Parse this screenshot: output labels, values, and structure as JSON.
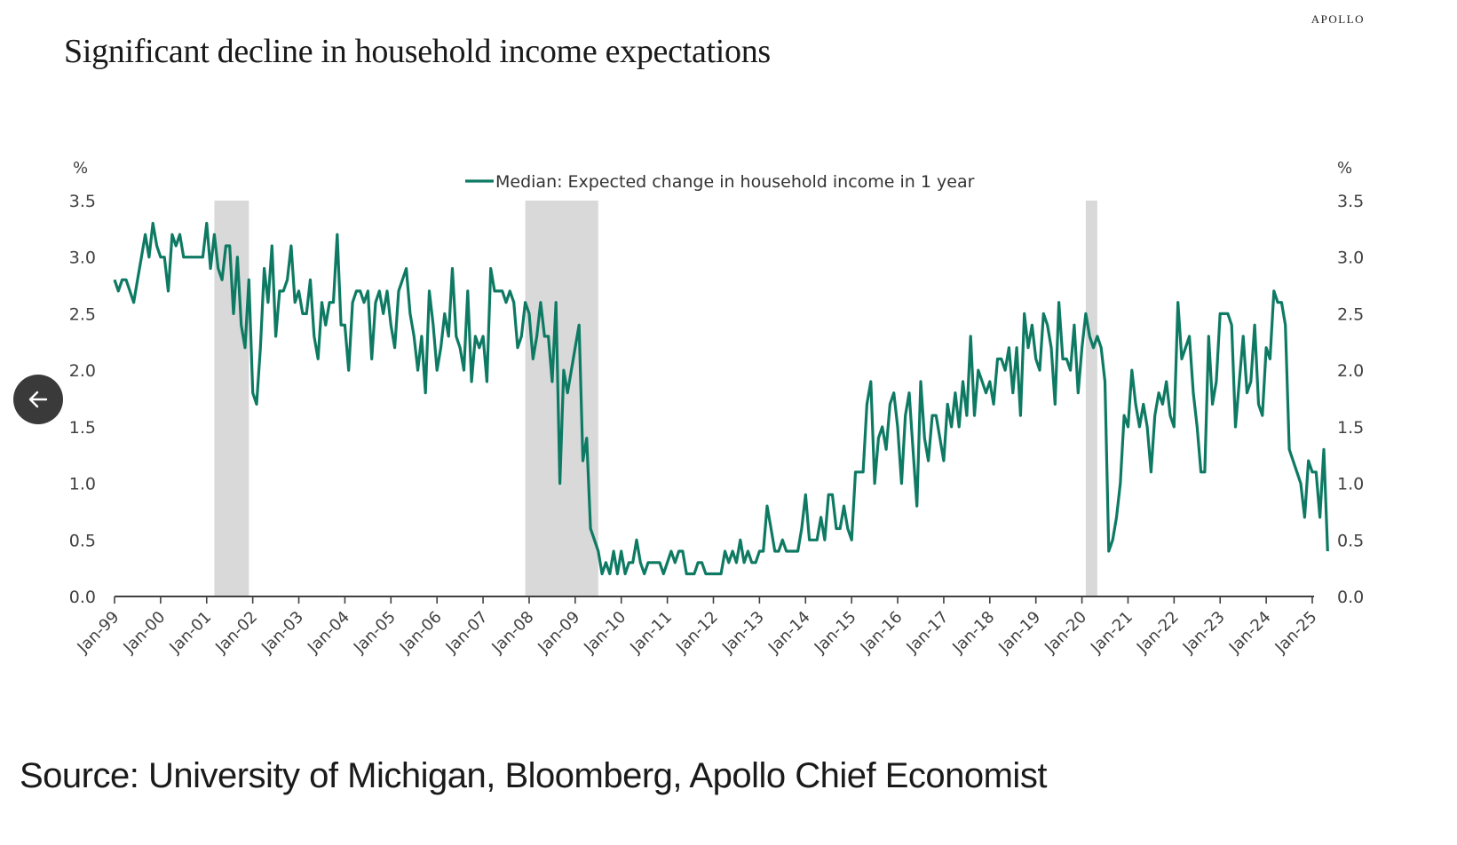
{
  "brand": "APOLLO",
  "title": "Significant decline in household income expectations",
  "source": "Source: University of Michigan, Bloomberg, Apollo Chief Economist",
  "nav": {
    "back_icon": "arrow-left-icon"
  },
  "colors": {
    "line": "#0e7a63",
    "recession": "#d9d9d9",
    "axis": "#404040",
    "text": "#404040"
  },
  "chart_data": {
    "type": "line",
    "title": "Significant decline in household income expectations",
    "xlabel": "",
    "ylabel": "%",
    "ylabel_right": "%",
    "ylim": [
      0,
      3.5
    ],
    "yticks": [
      "0.0",
      "0.5",
      "1.0",
      "1.5",
      "2.0",
      "2.5",
      "3.0",
      "3.5"
    ],
    "x_ticks": [
      "Jan-99",
      "Jan-00",
      "Jan-01",
      "Jan-02",
      "Jan-03",
      "Jan-04",
      "Jan-05",
      "Jan-06",
      "Jan-07",
      "Jan-08",
      "Jan-09",
      "Jan-10",
      "Jan-11",
      "Jan-12",
      "Jan-13",
      "Jan-14",
      "Jan-15",
      "Jan-16",
      "Jan-17",
      "Jan-18",
      "Jan-19",
      "Jan-20",
      "Jan-21",
      "Jan-22",
      "Jan-23",
      "Jan-24",
      "Jan-25"
    ],
    "legend": {
      "position": "top-center",
      "entries": [
        "Median: Expected change in household income in 1 year"
      ]
    },
    "grid": false,
    "recession_shading": [
      {
        "start": "Mar-01",
        "end": "Nov-01"
      },
      {
        "start": "Dec-07",
        "end": "Jun-09"
      },
      {
        "start": "Feb-20",
        "end": "Apr-20"
      }
    ],
    "series": [
      {
        "name": "Median: Expected change in household income in 1 year",
        "start": "Jan-99",
        "frequency": "monthly",
        "values": [
          2.8,
          2.7,
          2.8,
          2.8,
          2.7,
          2.6,
          2.8,
          3.0,
          3.2,
          3.0,
          3.3,
          3.1,
          3.0,
          3.0,
          2.7,
          3.2,
          3.1,
          3.2,
          3.0,
          3.0,
          3.0,
          3.0,
          3.0,
          3.0,
          3.3,
          2.9,
          3.2,
          2.9,
          2.8,
          3.1,
          3.1,
          2.5,
          3.0,
          2.4,
          2.2,
          2.8,
          1.8,
          1.7,
          2.2,
          2.9,
          2.6,
          3.1,
          2.3,
          2.7,
          2.7,
          2.8,
          3.1,
          2.6,
          2.7,
          2.5,
          2.5,
          2.8,
          2.3,
          2.1,
          2.6,
          2.4,
          2.6,
          2.6,
          3.2,
          2.4,
          2.4,
          2.0,
          2.6,
          2.7,
          2.7,
          2.6,
          2.7,
          2.1,
          2.6,
          2.7,
          2.5,
          2.7,
          2.4,
          2.2,
          2.7,
          2.8,
          2.9,
          2.5,
          2.3,
          2.0,
          2.3,
          1.8,
          2.7,
          2.4,
          2.0,
          2.2,
          2.5,
          2.3,
          2.9,
          2.3,
          2.2,
          2.0,
          2.7,
          1.9,
          2.3,
          2.2,
          2.3,
          1.9,
          2.9,
          2.7,
          2.7,
          2.7,
          2.6,
          2.7,
          2.6,
          2.2,
          2.3,
          2.6,
          2.5,
          2.1,
          2.3,
          2.6,
          2.3,
          2.3,
          1.9,
          2.6,
          1.0,
          2.0,
          1.8,
          2.0,
          2.2,
          2.4,
          1.2,
          1.4,
          0.6,
          0.5,
          0.4,
          0.2,
          0.3,
          0.2,
          0.4,
          0.2,
          0.4,
          0.2,
          0.3,
          0.3,
          0.5,
          0.3,
          0.2,
          0.3,
          0.3,
          0.3,
          0.3,
          0.2,
          0.3,
          0.4,
          0.3,
          0.4,
          0.4,
          0.2,
          0.2,
          0.2,
          0.3,
          0.3,
          0.2,
          0.2,
          0.2,
          0.2,
          0.2,
          0.4,
          0.3,
          0.4,
          0.3,
          0.5,
          0.3,
          0.4,
          0.3,
          0.3,
          0.4,
          0.4,
          0.8,
          0.6,
          0.4,
          0.4,
          0.5,
          0.4,
          0.4,
          0.4,
          0.4,
          0.6,
          0.9,
          0.5,
          0.5,
          0.5,
          0.7,
          0.5,
          0.9,
          0.9,
          0.6,
          0.6,
          0.8,
          0.6,
          0.5,
          1.1,
          1.1,
          1.1,
          1.7,
          1.9,
          1.0,
          1.4,
          1.5,
          1.3,
          1.7,
          1.8,
          1.5,
          1.0,
          1.6,
          1.8,
          1.3,
          0.8,
          1.9,
          1.4,
          1.2,
          1.6,
          1.6,
          1.4,
          1.2,
          1.7,
          1.5,
          1.8,
          1.5,
          1.9,
          1.6,
          2.3,
          1.6,
          2.0,
          1.9,
          1.8,
          1.9,
          1.7,
          2.1,
          2.1,
          2.0,
          2.2,
          1.8,
          2.2,
          1.6,
          2.5,
          2.2,
          2.4,
          2.1,
          2.0,
          2.5,
          2.4,
          2.2,
          1.7,
          2.6,
          2.1,
          2.1,
          2.0,
          2.4,
          1.8,
          2.2,
          2.5,
          2.3,
          2.2,
          2.3,
          2.2,
          1.9,
          0.4,
          0.5,
          0.7,
          1.0,
          1.6,
          1.5,
          2.0,
          1.7,
          1.5,
          1.7,
          1.5,
          1.1,
          1.6,
          1.8,
          1.7,
          1.9,
          1.6,
          1.5,
          2.6,
          2.1,
          2.2,
          2.3,
          1.8,
          1.5,
          1.1,
          1.1,
          2.3,
          1.7,
          1.9,
          2.5,
          2.5,
          2.5,
          2.4,
          1.5,
          1.9,
          2.3,
          1.8,
          1.9,
          2.4,
          1.7,
          1.6,
          2.2,
          2.1,
          2.7,
          2.6,
          2.6,
          2.4,
          1.3,
          1.2,
          1.1,
          1.0,
          0.7,
          1.2,
          1.1,
          1.1,
          0.7,
          1.3,
          0.4
        ]
      }
    ]
  }
}
